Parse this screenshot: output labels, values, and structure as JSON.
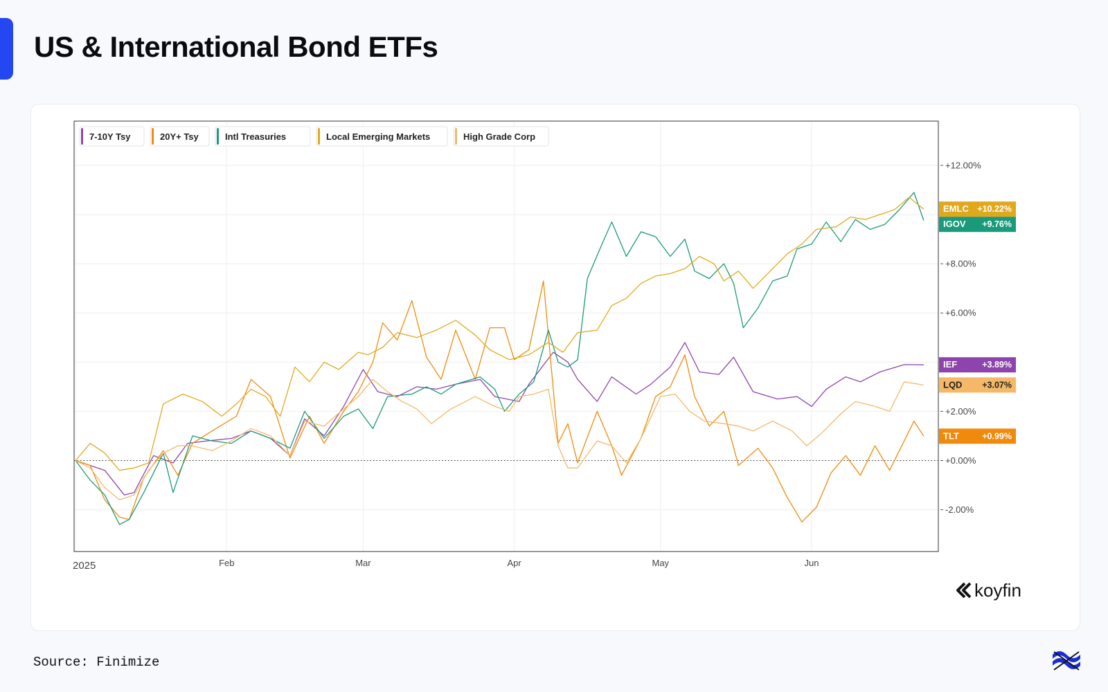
{
  "page": {
    "title": "US & International Bond ETFs",
    "source": "Source: Finimize",
    "watermark": "koyfin"
  },
  "colors": {
    "accent": "#2447f2",
    "ief": "#8e44ad",
    "tlt": "#ef8a0c",
    "igov": "#1a9a7a",
    "emlc": "#e0a91c",
    "lqd": "#f4b868"
  },
  "chart_data": {
    "type": "line",
    "title": "US & International Bond ETFs",
    "xlabel": "",
    "ylabel": "",
    "x_range": [
      -0.3,
      177
    ],
    "ylim": [
      -3.7,
      13.8
    ],
    "y_ticks": [
      -2,
      0,
      2,
      4,
      6,
      8,
      10,
      12
    ],
    "y_tick_labels": [
      "-2.00%",
      "+0.00%",
      "+2.00%",
      "",
      "+6.00%",
      "+8.00%",
      "",
      "+12.00%"
    ],
    "x_ticks": [
      {
        "x": 0,
        "label": "2025"
      },
      {
        "x": 31,
        "label": "Feb"
      },
      {
        "x": 59,
        "label": "Mar"
      },
      {
        "x": 90,
        "label": "Apr"
      },
      {
        "x": 120,
        "label": "May"
      },
      {
        "x": 151,
        "label": "Jun"
      }
    ],
    "baseline": 0,
    "series": [
      {
        "ticker": "IEF",
        "name": "7-10Y Tsy",
        "color": "#8e44ad",
        "last_label": "+3.89%",
        "last_value": 3.89,
        "points": [
          [
            0,
            0
          ],
          [
            6,
            -0.4
          ],
          [
            10,
            -1.4
          ],
          [
            12,
            -1.3
          ],
          [
            16,
            0.2
          ],
          [
            20,
            -0.1
          ],
          [
            23,
            0.7
          ],
          [
            27,
            0.8
          ],
          [
            32,
            0.9
          ],
          [
            36,
            1.2
          ],
          [
            40,
            0.9
          ],
          [
            44,
            0.2
          ],
          [
            47,
            1.7
          ],
          [
            51,
            1.0
          ],
          [
            55,
            2.2
          ],
          [
            59,
            3.7
          ],
          [
            62,
            2.8
          ],
          [
            66,
            2.6
          ],
          [
            70,
            3.0
          ],
          [
            74,
            2.9
          ],
          [
            78,
            3.1
          ],
          [
            83,
            3.3
          ],
          [
            86,
            2.6
          ],
          [
            91,
            2.4
          ],
          [
            93,
            3.1
          ],
          [
            98,
            4.4
          ],
          [
            101,
            4.0
          ],
          [
            103,
            3.3
          ],
          [
            107,
            2.4
          ],
          [
            110,
            3.4
          ],
          [
            115,
            2.7
          ],
          [
            118,
            3.1
          ],
          [
            122,
            3.8
          ],
          [
            125,
            4.8
          ],
          [
            128,
            3.6
          ],
          [
            132,
            3.5
          ],
          [
            135,
            4.2
          ],
          [
            139,
            2.8
          ],
          [
            144,
            2.5
          ],
          [
            148,
            2.6
          ],
          [
            151,
            2.2
          ],
          [
            154,
            2.9
          ],
          [
            158,
            3.4
          ],
          [
            161,
            3.2
          ],
          [
            165,
            3.6
          ],
          [
            170,
            3.9
          ],
          [
            174,
            3.89
          ]
        ]
      },
      {
        "ticker": "TLT",
        "name": "20Y+ Tsy",
        "color": "#ef8a0c",
        "last_label": "+0.99%",
        "last_value": 0.99,
        "points": [
          [
            0,
            0
          ],
          [
            3,
            -0.2
          ],
          [
            6,
            -1.6
          ],
          [
            9,
            -2.3
          ],
          [
            11,
            -2.4
          ],
          [
            14,
            -0.7
          ],
          [
            18,
            0.4
          ],
          [
            21,
            -0.6
          ],
          [
            24,
            0.7
          ],
          [
            28,
            1.2
          ],
          [
            33,
            1.8
          ],
          [
            36,
            3.3
          ],
          [
            40,
            2.6
          ],
          [
            44,
            0.1
          ],
          [
            48,
            1.8
          ],
          [
            51,
            0.7
          ],
          [
            55,
            2.0
          ],
          [
            58,
            2.8
          ],
          [
            61,
            4.0
          ],
          [
            63,
            5.6
          ],
          [
            66,
            4.9
          ],
          [
            69,
            6.5
          ],
          [
            72,
            4.2
          ],
          [
            75,
            3.3
          ],
          [
            78,
            5.3
          ],
          [
            82,
            3.3
          ],
          [
            85,
            5.4
          ],
          [
            88,
            5.4
          ],
          [
            90,
            4.1
          ],
          [
            93,
            4.5
          ],
          [
            96,
            7.3
          ],
          [
            99,
            0.7
          ],
          [
            101,
            1.5
          ],
          [
            103,
            -0.1
          ],
          [
            107,
            2.0
          ],
          [
            110,
            0.6
          ],
          [
            112,
            -0.6
          ],
          [
            116,
            0.9
          ],
          [
            119,
            2.6
          ],
          [
            122,
            3.0
          ],
          [
            125,
            4.3
          ],
          [
            127,
            2.6
          ],
          [
            130,
            1.4
          ],
          [
            133,
            2.0
          ],
          [
            136,
            -0.2
          ],
          [
            140,
            0.5
          ],
          [
            143,
            -0.3
          ],
          [
            146,
            -1.5
          ],
          [
            149,
            -2.5
          ],
          [
            152,
            -1.9
          ],
          [
            155,
            -0.5
          ],
          [
            158,
            0.2
          ],
          [
            161,
            -0.6
          ],
          [
            164,
            0.6
          ],
          [
            167,
            -0.4
          ],
          [
            170,
            0.8
          ],
          [
            172,
            1.6
          ],
          [
            174,
            0.99
          ]
        ]
      },
      {
        "ticker": "IGOV",
        "name": "Intl Treasuries",
        "color": "#1a9a7a",
        "last_label": "+9.76%",
        "last_value": 9.76,
        "points": [
          [
            0,
            0
          ],
          [
            3,
            -0.8
          ],
          [
            6,
            -1.4
          ],
          [
            9,
            -2.6
          ],
          [
            11,
            -2.4
          ],
          [
            14,
            -1.3
          ],
          [
            18,
            0.3
          ],
          [
            20,
            -1.3
          ],
          [
            24,
            1.0
          ],
          [
            28,
            0.8
          ],
          [
            32,
            0.7
          ],
          [
            36,
            1.2
          ],
          [
            40,
            0.9
          ],
          [
            44,
            0.5
          ],
          [
            47,
            2.0
          ],
          [
            51,
            0.9
          ],
          [
            55,
            1.8
          ],
          [
            58,
            2.1
          ],
          [
            61,
            1.3
          ],
          [
            64,
            2.6
          ],
          [
            69,
            2.7
          ],
          [
            72,
            3.0
          ],
          [
            75,
            2.7
          ],
          [
            78,
            3.1
          ],
          [
            83,
            3.4
          ],
          [
            86,
            2.9
          ],
          [
            88,
            2.0
          ],
          [
            91,
            2.7
          ],
          [
            94,
            3.2
          ],
          [
            97,
            5.3
          ],
          [
            99,
            4.0
          ],
          [
            101,
            3.8
          ],
          [
            103,
            4.1
          ],
          [
            105,
            7.4
          ],
          [
            108,
            8.8
          ],
          [
            110,
            9.7
          ],
          [
            113,
            8.3
          ],
          [
            116,
            9.3
          ],
          [
            119,
            9.1
          ],
          [
            122,
            8.3
          ],
          [
            125,
            9.0
          ],
          [
            127,
            7.7
          ],
          [
            130,
            7.4
          ],
          [
            133,
            8.0
          ],
          [
            135,
            7.2
          ],
          [
            137,
            5.4
          ],
          [
            140,
            6.2
          ],
          [
            143,
            7.3
          ],
          [
            146,
            7.5
          ],
          [
            148,
            8.6
          ],
          [
            151,
            8.8
          ],
          [
            154,
            9.7
          ],
          [
            157,
            8.9
          ],
          [
            160,
            9.8
          ],
          [
            163,
            9.4
          ],
          [
            166,
            9.6
          ],
          [
            169,
            10.2
          ],
          [
            172,
            10.9
          ],
          [
            174,
            9.76
          ]
        ]
      },
      {
        "ticker": "EMLC",
        "name": "Local Emerging Markets",
        "color": "#e0a91c",
        "last_label": "+10.22%",
        "last_value": 10.22,
        "points": [
          [
            0,
            0
          ],
          [
            3,
            0.7
          ],
          [
            6,
            0.3
          ],
          [
            9,
            -0.4
          ],
          [
            12,
            -0.3
          ],
          [
            15,
            -0.1
          ],
          [
            18,
            2.3
          ],
          [
            22,
            2.7
          ],
          [
            26,
            2.4
          ],
          [
            30,
            1.8
          ],
          [
            33,
            2.3
          ],
          [
            36,
            2.9
          ],
          [
            39,
            2.6
          ],
          [
            42,
            1.8
          ],
          [
            45,
            3.8
          ],
          [
            48,
            3.2
          ],
          [
            51,
            4.0
          ],
          [
            54,
            3.7
          ],
          [
            58,
            4.4
          ],
          [
            60,
            4.3
          ],
          [
            63,
            4.6
          ],
          [
            66,
            5.2
          ],
          [
            70,
            5.0
          ],
          [
            74,
            5.3
          ],
          [
            78,
            5.7
          ],
          [
            82,
            5.1
          ],
          [
            85,
            4.5
          ],
          [
            89,
            4.1
          ],
          [
            93,
            4.3
          ],
          [
            97,
            4.8
          ],
          [
            100,
            4.4
          ],
          [
            103,
            5.2
          ],
          [
            107,
            5.3
          ],
          [
            110,
            6.3
          ],
          [
            113,
            6.6
          ],
          [
            116,
            7.2
          ],
          [
            119,
            7.5
          ],
          [
            122,
            7.6
          ],
          [
            125,
            7.8
          ],
          [
            128,
            8.3
          ],
          [
            131,
            8.0
          ],
          [
            133,
            7.3
          ],
          [
            136,
            7.7
          ],
          [
            139,
            7.0
          ],
          [
            143,
            7.8
          ],
          [
            146,
            8.4
          ],
          [
            149,
            8.8
          ],
          [
            152,
            9.4
          ],
          [
            156,
            9.5
          ],
          [
            159,
            9.9
          ],
          [
            162,
            9.8
          ],
          [
            165,
            10.0
          ],
          [
            168,
            10.2
          ],
          [
            171,
            10.7
          ],
          [
            174,
            10.22
          ]
        ]
      },
      {
        "ticker": "LQD",
        "name": "High Grade Corp",
        "color": "#f4b868",
        "last_label": "+3.07%",
        "last_value": 3.07,
        "points": [
          [
            0,
            0
          ],
          [
            3,
            -0.3
          ],
          [
            6,
            -1.1
          ],
          [
            9,
            -1.6
          ],
          [
            12,
            -1.4
          ],
          [
            15,
            -0.4
          ],
          [
            18,
            0.3
          ],
          [
            21,
            0.6
          ],
          [
            24,
            0.6
          ],
          [
            28,
            0.4
          ],
          [
            32,
            0.8
          ],
          [
            36,
            1.3
          ],
          [
            40,
            1.0
          ],
          [
            44,
            0.2
          ],
          [
            47,
            1.6
          ],
          [
            51,
            1.4
          ],
          [
            55,
            2.1
          ],
          [
            58,
            2.6
          ],
          [
            61,
            3.3
          ],
          [
            64,
            2.8
          ],
          [
            67,
            2.4
          ],
          [
            70,
            2.1
          ],
          [
            73,
            1.5
          ],
          [
            77,
            2.1
          ],
          [
            82,
            2.6
          ],
          [
            86,
            2.2
          ],
          [
            89,
            2.0
          ],
          [
            91,
            2.6
          ],
          [
            94,
            2.7
          ],
          [
            97,
            2.9
          ],
          [
            99,
            0.6
          ],
          [
            101,
            -0.3
          ],
          [
            103,
            -0.3
          ],
          [
            107,
            0.8
          ],
          [
            110,
            0.6
          ],
          [
            113,
            -0.1
          ],
          [
            116,
            0.9
          ],
          [
            120,
            2.6
          ],
          [
            123,
            2.7
          ],
          [
            126,
            2.0
          ],
          [
            129,
            1.6
          ],
          [
            133,
            1.5
          ],
          [
            136,
            1.4
          ],
          [
            139,
            1.2
          ],
          [
            143,
            1.6
          ],
          [
            147,
            1.2
          ],
          [
            150,
            0.6
          ],
          [
            153,
            1.1
          ],
          [
            157,
            1.9
          ],
          [
            160,
            2.4
          ],
          [
            164,
            2.2
          ],
          [
            167,
            2.0
          ],
          [
            170,
            3.2
          ],
          [
            174,
            3.07
          ]
        ]
      }
    ]
  }
}
